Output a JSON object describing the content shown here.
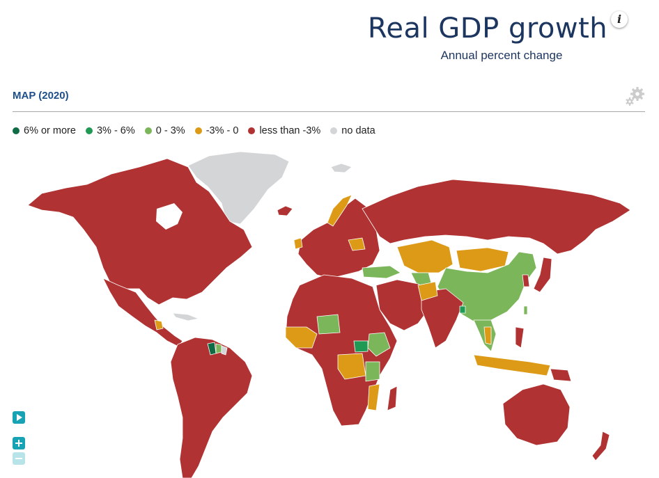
{
  "header": {
    "title": "Real GDP growth",
    "subtitle": "Annual percent change",
    "info_glyph": "i"
  },
  "section": {
    "label": "MAP (2020)"
  },
  "legend": [
    {
      "label": "6% or more",
      "color": "#0f6b44"
    },
    {
      "label": "3% - 6%",
      "color": "#1f9a55"
    },
    {
      "label": "0 - 3%",
      "color": "#7cb65a"
    },
    {
      "label": "-3% - 0",
      "color": "#dd9a16"
    },
    {
      "label": "less than -3%",
      "color": "#b03232"
    },
    {
      "label": "no data",
      "color": "#d3d5d7"
    }
  ],
  "icons": {
    "info": "info-icon",
    "settings": "gear-icon",
    "play": "play-icon",
    "zoom_in": "zoom-in-icon",
    "zoom_out": "zoom-out-icon"
  }
}
